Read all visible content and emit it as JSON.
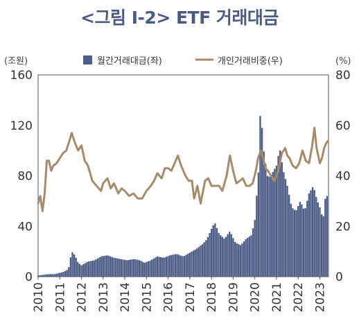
{
  "chart_data": {
    "type": "bar+line",
    "title": "<그림 I-2> ETF 거래대금",
    "left_axis": {
      "unit_label": "(조원)",
      "ylim": [
        0,
        160
      ],
      "ticks": [
        "0",
        "40",
        "80",
        "120",
        "160"
      ]
    },
    "right_axis": {
      "unit_label": "(%)",
      "ylim": [
        0,
        80
      ],
      "ticks": [
        "0",
        "20",
        "40",
        "60",
        "80"
      ]
    },
    "x_ticks": [
      "2010",
      "2011",
      "2012",
      "2013",
      "2014",
      "2015",
      "2016",
      "2017",
      "2018",
      "2019",
      "2020",
      "2021",
      "2022",
      "2023"
    ],
    "x_range_years": [
      2010,
      2023.4
    ],
    "series": [
      {
        "name": "월간거래대금(좌)",
        "kind": "bar",
        "axis": "left",
        "color": "#4d5d87",
        "points": [
          [
            2010.0,
            1
          ],
          [
            2010.25,
            1.5
          ],
          [
            2010.5,
            2
          ],
          [
            2010.75,
            2
          ],
          [
            2011.0,
            3
          ],
          [
            2011.2,
            4
          ],
          [
            2011.4,
            6
          ],
          [
            2011.55,
            20
          ],
          [
            2011.7,
            17
          ],
          [
            2011.85,
            11
          ],
          [
            2012.0,
            9
          ],
          [
            2012.3,
            12
          ],
          [
            2012.6,
            13
          ],
          [
            2012.9,
            16
          ],
          [
            2013.2,
            17
          ],
          [
            2013.5,
            15
          ],
          [
            2013.8,
            14
          ],
          [
            2014.1,
            13
          ],
          [
            2014.4,
            14
          ],
          [
            2014.7,
            13
          ],
          [
            2014.9,
            11
          ],
          [
            2015.2,
            13
          ],
          [
            2015.5,
            16
          ],
          [
            2015.8,
            15
          ],
          [
            2016.1,
            17
          ],
          [
            2016.4,
            18
          ],
          [
            2016.7,
            16
          ],
          [
            2017.0,
            19
          ],
          [
            2017.3,
            22
          ],
          [
            2017.6,
            26
          ],
          [
            2017.8,
            30
          ],
          [
            2018.0,
            38
          ],
          [
            2018.15,
            43
          ],
          [
            2018.35,
            34
          ],
          [
            2018.6,
            30
          ],
          [
            2018.85,
            36
          ],
          [
            2019.1,
            27
          ],
          [
            2019.35,
            25
          ],
          [
            2019.6,
            30
          ],
          [
            2019.85,
            33
          ],
          [
            2020.0,
            45
          ],
          [
            2020.1,
            68
          ],
          [
            2020.2,
            90
          ],
          [
            2020.28,
            150
          ],
          [
            2020.35,
            108
          ],
          [
            2020.45,
            95
          ],
          [
            2020.6,
            78
          ],
          [
            2020.8,
            82
          ],
          [
            2021.0,
            88
          ],
          [
            2021.15,
            102
          ],
          [
            2021.3,
            85
          ],
          [
            2021.5,
            72
          ],
          [
            2021.7,
            55
          ],
          [
            2021.9,
            52
          ],
          [
            2022.1,
            60
          ],
          [
            2022.3,
            52
          ],
          [
            2022.5,
            66
          ],
          [
            2022.7,
            72
          ],
          [
            2022.85,
            62
          ],
          [
            2023.0,
            55
          ],
          [
            2023.15,
            45
          ],
          [
            2023.3,
            70
          ],
          [
            2023.4,
            52
          ]
        ]
      },
      {
        "name": "개인거래비중(우)",
        "kind": "line",
        "axis": "right",
        "color": "#a98a68",
        "points": [
          [
            2010.0,
            29
          ],
          [
            2010.1,
            32
          ],
          [
            2010.2,
            26
          ],
          [
            2010.3,
            33
          ],
          [
            2010.4,
            46
          ],
          [
            2010.5,
            46
          ],
          [
            2010.6,
            42
          ],
          [
            2010.7,
            44
          ],
          [
            2010.85,
            45
          ],
          [
            2011.0,
            47
          ],
          [
            2011.15,
            49
          ],
          [
            2011.3,
            50
          ],
          [
            2011.45,
            54
          ],
          [
            2011.55,
            57
          ],
          [
            2011.7,
            53
          ],
          [
            2011.85,
            50
          ],
          [
            2012.0,
            52
          ],
          [
            2012.15,
            46
          ],
          [
            2012.3,
            44
          ],
          [
            2012.5,
            38
          ],
          [
            2012.7,
            36
          ],
          [
            2012.9,
            34
          ],
          [
            2013.0,
            37
          ],
          [
            2013.2,
            39
          ],
          [
            2013.35,
            35
          ],
          [
            2013.5,
            37
          ],
          [
            2013.7,
            33
          ],
          [
            2013.85,
            35
          ],
          [
            2014.0,
            34
          ],
          [
            2014.2,
            32
          ],
          [
            2014.4,
            33
          ],
          [
            2014.6,
            31
          ],
          [
            2014.8,
            31
          ],
          [
            2015.0,
            34
          ],
          [
            2015.2,
            36
          ],
          [
            2015.35,
            38
          ],
          [
            2015.5,
            41
          ],
          [
            2015.7,
            39
          ],
          [
            2015.85,
            43
          ],
          [
            2016.0,
            43
          ],
          [
            2016.15,
            42
          ],
          [
            2016.3,
            45
          ],
          [
            2016.45,
            48
          ],
          [
            2016.6,
            44
          ],
          [
            2016.8,
            40
          ],
          [
            2016.95,
            38
          ],
          [
            2017.1,
            38
          ],
          [
            2017.2,
            31
          ],
          [
            2017.35,
            36
          ],
          [
            2017.5,
            29
          ],
          [
            2017.7,
            38
          ],
          [
            2017.85,
            39
          ],
          [
            2018.0,
            36
          ],
          [
            2018.2,
            36
          ],
          [
            2018.35,
            36
          ],
          [
            2018.5,
            34
          ],
          [
            2018.7,
            40
          ],
          [
            2018.85,
            48
          ],
          [
            2019.0,
            42
          ],
          [
            2019.15,
            37
          ],
          [
            2019.3,
            38
          ],
          [
            2019.45,
            39
          ],
          [
            2019.6,
            36
          ],
          [
            2019.75,
            36
          ],
          [
            2019.9,
            37
          ],
          [
            2020.05,
            42
          ],
          [
            2020.15,
            47
          ],
          [
            2020.28,
            50
          ],
          [
            2020.38,
            47
          ],
          [
            2020.5,
            43
          ],
          [
            2020.6,
            42
          ],
          [
            2020.75,
            40
          ],
          [
            2020.9,
            38
          ],
          [
            2021.0,
            40
          ],
          [
            2021.1,
            43
          ],
          [
            2021.25,
            49
          ],
          [
            2021.4,
            51
          ],
          [
            2021.5,
            48
          ],
          [
            2021.6,
            47
          ],
          [
            2021.75,
            44
          ],
          [
            2021.9,
            43
          ],
          [
            2022.05,
            45
          ],
          [
            2022.2,
            50
          ],
          [
            2022.35,
            46
          ],
          [
            2022.5,
            45
          ],
          [
            2022.65,
            52
          ],
          [
            2022.75,
            59
          ],
          [
            2022.85,
            51
          ],
          [
            2023.0,
            45
          ],
          [
            2023.1,
            47
          ],
          [
            2023.2,
            51
          ],
          [
            2023.3,
            53
          ],
          [
            2023.4,
            54
          ]
        ]
      }
    ],
    "legend_position": "top-center",
    "grid": false
  }
}
